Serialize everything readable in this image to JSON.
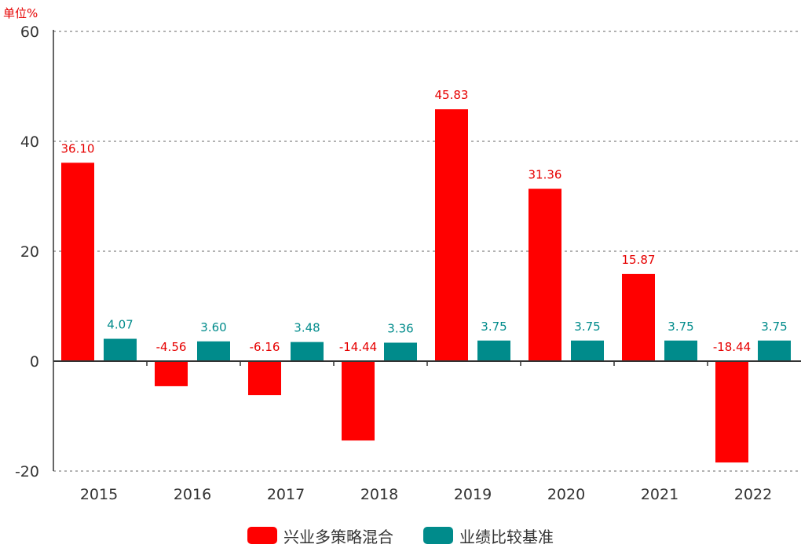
{
  "chart_data": {
    "type": "bar",
    "unit_label": "单位%",
    "categories": [
      "2015",
      "2016",
      "2017",
      "2018",
      "2019",
      "2020",
      "2021",
      "2022"
    ],
    "series": [
      {
        "name": "兴业多策略混合",
        "color": "#ff0000",
        "values": [
          36.1,
          -4.56,
          -6.16,
          -14.44,
          45.83,
          31.36,
          15.87,
          -18.44
        ]
      },
      {
        "name": "业绩比较基准",
        "color": "#008b8b",
        "values": [
          4.07,
          3.6,
          3.48,
          3.36,
          3.75,
          3.75,
          3.75,
          3.75
        ]
      }
    ],
    "value_label_colors": [
      "#e60000",
      "#008b8b"
    ],
    "yticks": [
      60,
      40,
      20,
      0,
      -20
    ],
    "ylim": [
      -20,
      60
    ],
    "grid": "dotted horizontal",
    "legend_position": "bottom-center"
  }
}
